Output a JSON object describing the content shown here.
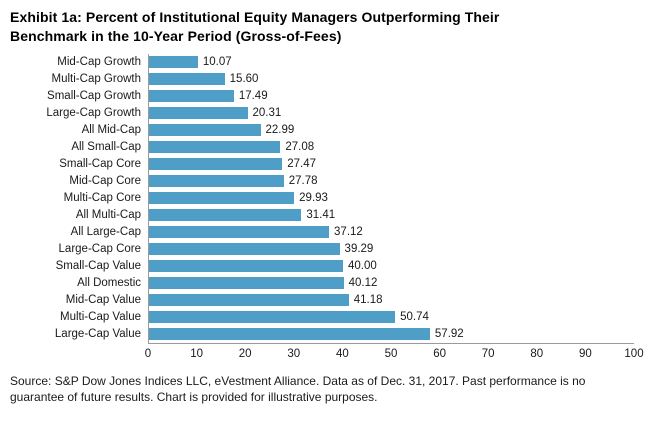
{
  "title": "Exhibit 1a: Percent of Institutional Equity Managers Outperforming Their Benchmark in the 10-Year Period (Gross-of-Fees)",
  "source_note": "Source: S&P Dow Jones Indices LLC, eVestment Alliance.  Data as of Dec. 31, 2017.  Past performance is no guarantee of future results.  Chart is provided for illustrative purposes.",
  "chart_data": {
    "type": "bar",
    "orientation": "horizontal",
    "title": "Exhibit 1a: Percent of Institutional Equity Managers Outperforming Their Benchmark in the 10-Year Period (Gross-of-Fees)",
    "categories": [
      "Mid-Cap Growth",
      "Multi-Cap Growth",
      "Small-Cap Growth",
      "Large-Cap Growth",
      "All Mid-Cap",
      "All Small-Cap",
      "Small-Cap Core",
      "Mid-Cap Core",
      "Multi-Cap Core",
      "All Multi-Cap",
      "All Large-Cap",
      "Large-Cap Core",
      "Small-Cap Value",
      "All Domestic",
      "Mid-Cap Value",
      "Multi-Cap Value",
      "Large-Cap Value"
    ],
    "values": [
      10.07,
      15.6,
      17.49,
      20.31,
      22.99,
      27.08,
      27.47,
      27.78,
      29.93,
      31.41,
      37.12,
      39.29,
      40.0,
      40.12,
      41.18,
      50.74,
      57.92
    ],
    "value_labels": [
      "10.07",
      "15.60",
      "17.49",
      "20.31",
      "22.99",
      "27.08",
      "27.47",
      "27.78",
      "29.93",
      "31.41",
      "37.12",
      "39.29",
      "40.00",
      "40.12",
      "41.18",
      "50.74",
      "57.92"
    ],
    "xlim": [
      0,
      100
    ],
    "xticks": [
      0,
      10,
      20,
      30,
      40,
      50,
      60,
      70,
      80,
      90,
      100
    ],
    "bar_color": "#4e9ec7",
    "xlabel": "",
    "ylabel": "",
    "grid": false,
    "legend": "none"
  }
}
